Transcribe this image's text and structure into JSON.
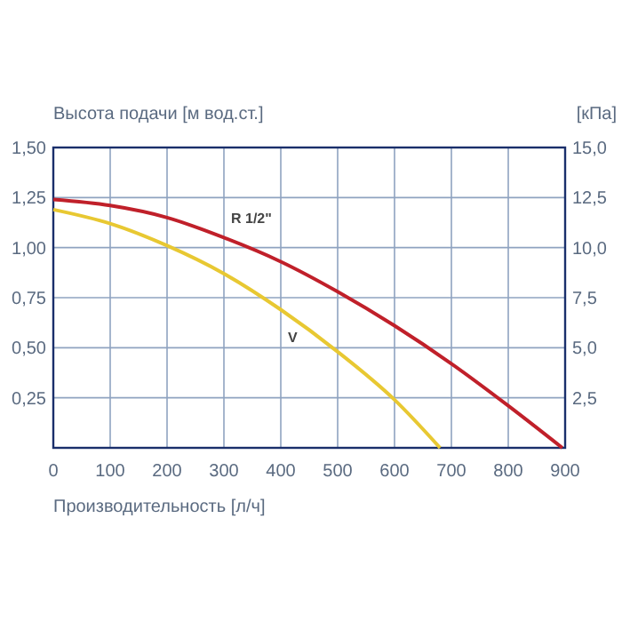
{
  "chart_data": {
    "type": "line",
    "ylabel": "Высота подачи [м вод.ст.]",
    "y2label": "[кПа]",
    "xlabel": "Производительность [л/ч]",
    "x": [
      0,
      100,
      200,
      300,
      400,
      500,
      600,
      700,
      800,
      895
    ],
    "series": [
      {
        "name": "R 1/2\"",
        "color": "#c0202a",
        "values": [
          1.24,
          1.21,
          1.15,
          1.05,
          0.93,
          0.78,
          0.61,
          0.42,
          0.21,
          0
        ]
      },
      {
        "name": "V",
        "color": "#e8c832",
        "x": [
          0,
          100,
          200,
          300,
          400,
          500,
          600,
          680
        ],
        "values": [
          1.19,
          1.12,
          1.01,
          0.87,
          0.69,
          0.48,
          0.24,
          0
        ]
      }
    ],
    "xlim": [
      0,
      900
    ],
    "xticks": [
      0,
      100,
      200,
      300,
      400,
      500,
      600,
      700,
      800,
      900
    ],
    "ylim": [
      0,
      1.5
    ],
    "yticks": [
      {
        "value": 0.25,
        "label": "0,25"
      },
      {
        "value": 0.5,
        "label": "0,50"
      },
      {
        "value": 0.75,
        "label": "0,75"
      },
      {
        "value": 1,
        "label": "1,00"
      },
      {
        "value": 1.25,
        "label": "1,25"
      },
      {
        "value": 1.5,
        "label": "1,50"
      }
    ],
    "y2lim": [
      0,
      15
    ],
    "y2ticks": [
      {
        "value": 2.5,
        "label": "2,5"
      },
      {
        "value": 5,
        "label": "5,0"
      },
      {
        "value": 7.5,
        "label": "7,5"
      },
      {
        "value": 10,
        "label": "10,0"
      },
      {
        "value": 12.5,
        "label": "12,5"
      },
      {
        "value": 15,
        "label": "15,0"
      }
    ],
    "grid": true,
    "legend": false,
    "marker": "none",
    "line_style": "solid"
  }
}
